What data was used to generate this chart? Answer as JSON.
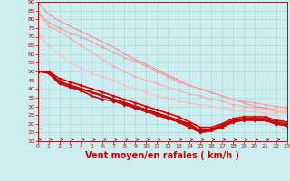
{
  "background_color": "#cdeef0",
  "grid_color": "#aadddd",
  "xlabel": "Vent moyen/en rafales ( km/h )",
  "xlabel_color": "#cc0000",
  "xlabel_fontsize": 7,
  "tick_color": "#cc0000",
  "x_values": [
    0,
    1,
    2,
    3,
    4,
    5,
    6,
    7,
    8,
    9,
    10,
    11,
    12,
    13,
    14,
    15,
    16,
    17,
    18,
    19,
    20,
    21,
    22,
    23
  ],
  "ylim": [
    10,
    90
  ],
  "xlim": [
    0,
    23
  ],
  "yticks": [
    10,
    15,
    20,
    25,
    30,
    35,
    40,
    45,
    50,
    55,
    60,
    65,
    70,
    75,
    80,
    85,
    90
  ],
  "lines": [
    {
      "y": [
        90,
        83,
        79,
        76,
        73,
        70,
        67,
        64,
        60,
        57,
        54,
        51,
        48,
        45,
        42,
        40,
        38,
        36,
        34,
        32,
        30,
        29,
        28,
        28
      ],
      "color": "#ff8888",
      "linewidth": 0.8,
      "marker": null
    },
    {
      "y": [
        84,
        78,
        75,
        72,
        70,
        67,
        64,
        61,
        58,
        56,
        53,
        50,
        47,
        44,
        42,
        40,
        38,
        36,
        34,
        33,
        32,
        31,
        30,
        29
      ],
      "color": "#ff9999",
      "linewidth": 0.8,
      "marker": "D",
      "markersize": 1.5
    },
    {
      "y": [
        84,
        76,
        73,
        69,
        65,
        61,
        57,
        53,
        50,
        47,
        45,
        43,
        41,
        39,
        37,
        36,
        34,
        33,
        31,
        30,
        29,
        28,
        27,
        27
      ],
      "color": "#ffaaaa",
      "linewidth": 0.8,
      "marker": "D",
      "markersize": 1.5
    },
    {
      "y": [
        72,
        65,
        60,
        55,
        52,
        49,
        47,
        45,
        42,
        40,
        38,
        36,
        35,
        33,
        32,
        31,
        30,
        29,
        28,
        27,
        27,
        26,
        26,
        26
      ],
      "color": "#ffbbbb",
      "linewidth": 0.8,
      "marker": "D",
      "markersize": 1.5
    },
    {
      "y": [
        50,
        50,
        46,
        44,
        42,
        40,
        38,
        36,
        34,
        32,
        30,
        28,
        26,
        24,
        21,
        18,
        18,
        20,
        23,
        24,
        24,
        24,
        22,
        21
      ],
      "color": "#dd0000",
      "linewidth": 1.2,
      "marker": "D",
      "markersize": 1.8
    },
    {
      "y": [
        50,
        50,
        44,
        42,
        40,
        38,
        36,
        34,
        32,
        30,
        28,
        26,
        24,
        22,
        20,
        16,
        17,
        19,
        22,
        23,
        23,
        23,
        21,
        20
      ],
      "color": "#cc0000",
      "linewidth": 1.2,
      "marker": "D",
      "markersize": 1.8
    },
    {
      "y": [
        50,
        49,
        43,
        41,
        39,
        36,
        34,
        33,
        31,
        29,
        27,
        25,
        23,
        21,
        18,
        15,
        16,
        18,
        21,
        22,
        22,
        22,
        20,
        19
      ],
      "color": "#cc0000",
      "linewidth": 1.2,
      "marker": "D",
      "markersize": 1.8
    },
    {
      "y": [
        50,
        50,
        44,
        42,
        40,
        38,
        36,
        34,
        32,
        30,
        28,
        26,
        24,
        22,
        19,
        16,
        16,
        19,
        21,
        23,
        22,
        22,
        20,
        19
      ],
      "color": "#cc0000",
      "linewidth": 1.5,
      "marker": null
    }
  ],
  "arrow_color": "#cc0000"
}
